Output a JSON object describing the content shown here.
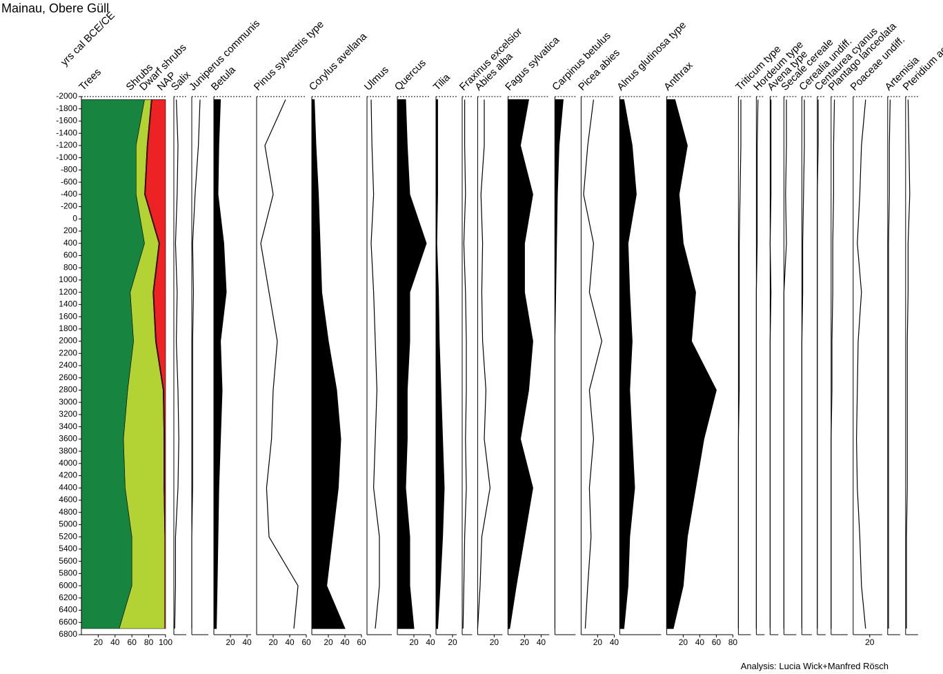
{
  "title": "Mainau, Obere Güll",
  "credit": "Analysis: Lucia Wick+Manfred Rösch",
  "chart_data": {
    "type": "area",
    "y_label": "yrs cal BCE/CE",
    "y": [
      -1950,
      -1200,
      -400,
      400,
      1200,
      2000,
      2800,
      3600,
      4400,
      5200,
      6000,
      6700
    ],
    "ylim": [
      -2000,
      6800
    ],
    "yticks": [
      -2000,
      -1800,
      -1600,
      -1400,
      -1200,
      -1000,
      -800,
      -600,
      -400,
      -200,
      0,
      200,
      400,
      600,
      800,
      1000,
      1200,
      1400,
      1600,
      1800,
      2000,
      2200,
      2400,
      2600,
      2800,
      3000,
      3200,
      3400,
      3600,
      3800,
      4000,
      4200,
      4400,
      4600,
      4800,
      5000,
      5200,
      5400,
      5600,
      5800,
      6000,
      6200,
      6400,
      6600,
      6800
    ],
    "summary": {
      "xlim": [
        0,
        100
      ],
      "xticks": [
        20,
        40,
        60,
        80,
        100
      ],
      "series": [
        {
          "name": "Trees",
          "color": "#178440",
          "values": [
            75,
            65,
            65,
            75,
            58,
            62,
            55,
            50,
            52,
            60,
            60,
            45
          ]
        },
        {
          "name": "Shrubs",
          "color": "#b3d334",
          "values": [
            8,
            13,
            10,
            17,
            27,
            26,
            42,
            48,
            46,
            39,
            39,
            54
          ]
        },
        {
          "name": "Dwarf shrubs",
          "color": "#8a1c1c",
          "values": [
            1,
            1,
            1,
            1,
            1,
            1,
            1,
            1,
            1,
            0,
            0,
            0
          ]
        },
        {
          "name": "NAP",
          "color": "#ed2224",
          "values": [
            16,
            21,
            24,
            7,
            14,
            11,
            2,
            1,
            1,
            1,
            1,
            1
          ]
        }
      ]
    },
    "series": [
      {
        "name": "Salix",
        "fill": false,
        "xlim": [
          0,
          15
        ],
        "xticks": [],
        "values": [
          3,
          5,
          4,
          2,
          4,
          3,
          5,
          6,
          5,
          2,
          2,
          1
        ]
      },
      {
        "name": "Juniperus communis",
        "fill": false,
        "xlim": [
          0,
          20
        ],
        "xticks": [],
        "values": [
          10,
          8,
          4,
          1,
          2,
          1,
          1,
          1,
          1,
          0,
          0,
          0
        ]
      },
      {
        "name": "Betula",
        "fill": true,
        "xlim": [
          0,
          45
        ],
        "xticks": [
          20,
          40
        ],
        "values": [
          8,
          6,
          5,
          12,
          15,
          8,
          10,
          8,
          6,
          5,
          4,
          3
        ]
      },
      {
        "name": "Pinus sylvestris type",
        "fill": false,
        "xlim": [
          0,
          60
        ],
        "xticks": [
          20,
          40,
          60
        ],
        "values": [
          35,
          10,
          20,
          5,
          15,
          25,
          20,
          18,
          12,
          15,
          50,
          45
        ]
      },
      {
        "name": "Corylus avellana",
        "fill": true,
        "xlim": [
          0,
          60
        ],
        "xticks": [
          20,
          40,
          60
        ],
        "values": [
          3,
          5,
          8,
          10,
          12,
          20,
          30,
          35,
          32,
          25,
          18,
          40
        ]
      },
      {
        "name": "Ulmus",
        "fill": false,
        "xlim": [
          0,
          30
        ],
        "xticks": [],
        "values": [
          5,
          6,
          8,
          5,
          8,
          10,
          12,
          10,
          8,
          15,
          15,
          10
        ]
      },
      {
        "name": "Quercus",
        "fill": true,
        "xlim": [
          0,
          40
        ],
        "xticks": [
          20,
          40
        ],
        "values": [
          10,
          12,
          15,
          35,
          15,
          15,
          12,
          12,
          10,
          15,
          15,
          20
        ]
      },
      {
        "name": "Tilia",
        "fill": true,
        "xlim": [
          0,
          25
        ],
        "xticks": [
          20
        ],
        "values": [
          2,
          2,
          2,
          1,
          3,
          4,
          6,
          8,
          10,
          8,
          5,
          2
        ]
      },
      {
        "name": "Fraxinus excelsior",
        "fill": false,
        "xlim": [
          0,
          12
        ],
        "xticks": [],
        "values": [
          3,
          3,
          4,
          2,
          4,
          5,
          5,
          4,
          5,
          3,
          2,
          1
        ]
      },
      {
        "name": "Abies alba",
        "fill": false,
        "xlim": [
          0,
          30
        ],
        "xticks": [
          20
        ],
        "values": [
          8,
          8,
          4,
          6,
          5,
          6,
          10,
          8,
          15,
          5,
          3,
          0
        ]
      },
      {
        "name": "Fagus sylvatica",
        "fill": true,
        "xlim": [
          0,
          50
        ],
        "xticks": [
          20,
          40
        ],
        "values": [
          25,
          15,
          30,
          20,
          20,
          30,
          25,
          15,
          30,
          20,
          10,
          2
        ]
      },
      {
        "name": "Carpinus betulus",
        "fill": true,
        "xlim": [
          0,
          25
        ],
        "xticks": [],
        "values": [
          10,
          5,
          3,
          2,
          1,
          0,
          0,
          0,
          0,
          0,
          0,
          0
        ]
      },
      {
        "name": "Picea abies",
        "fill": false,
        "xlim": [
          0,
          40
        ],
        "xticks": [
          20,
          40
        ],
        "values": [
          15,
          8,
          3,
          15,
          10,
          25,
          10,
          15,
          10,
          12,
          8,
          5
        ]
      },
      {
        "name": "Alnus glutinosa type",
        "fill": true,
        "xlim": [
          0,
          50
        ],
        "xticks": [],
        "values": [
          5,
          15,
          20,
          10,
          12,
          15,
          12,
          15,
          18,
          12,
          10,
          5
        ]
      },
      {
        "name": "Anthrax",
        "fill": true,
        "xlim": [
          0,
          80
        ],
        "xticks": [
          20,
          40,
          60,
          80
        ],
        "values": [
          10,
          25,
          15,
          20,
          35,
          30,
          60,
          45,
          35,
          25,
          20,
          8
        ]
      },
      {
        "name": "Triticum type",
        "fill": false,
        "xlim": [
          0,
          15
        ],
        "xticks": [],
        "values": [
          3,
          3,
          2,
          1,
          1,
          1,
          1,
          0,
          0,
          0,
          0,
          0
        ]
      },
      {
        "name": "Hordeum type",
        "fill": false,
        "xlim": [
          0,
          10
        ],
        "xticks": [],
        "values": [
          2,
          1,
          1,
          1,
          0,
          0,
          0,
          0,
          0,
          0,
          0,
          0
        ]
      },
      {
        "name": "Avena type",
        "fill": false,
        "xlim": [
          0,
          10
        ],
        "xticks": [],
        "values": [
          1,
          1,
          1,
          0,
          1,
          0,
          0,
          0,
          0,
          0,
          0,
          0
        ]
      },
      {
        "name": "Secale cereale",
        "fill": false,
        "xlim": [
          0,
          15
        ],
        "xticks": [],
        "values": [
          3,
          3,
          2,
          3,
          0,
          0,
          0,
          0,
          0,
          0,
          0,
          0
        ]
      },
      {
        "name": "Cerealia undiff.",
        "fill": false,
        "xlim": [
          0,
          12
        ],
        "xticks": [],
        "values": [
          3,
          3,
          2,
          1,
          1,
          0,
          0,
          0,
          0,
          0,
          0,
          0
        ]
      },
      {
        "name": "Centaurea cyanus",
        "fill": false,
        "xlim": [
          0,
          10
        ],
        "xticks": [],
        "values": [
          1,
          1,
          0,
          0,
          0,
          0,
          0,
          0,
          0,
          0,
          0,
          0
        ]
      },
      {
        "name": "Plantago lanceolata",
        "fill": false,
        "xlim": [
          0,
          20
        ],
        "xticks": [],
        "values": [
          4,
          3,
          3,
          2,
          2,
          1,
          1,
          0,
          0,
          0,
          0,
          0
        ]
      },
      {
        "name": "Poaceae undiff.",
        "fill": false,
        "xlim": [
          0,
          35
        ],
        "xticks": [
          20
        ],
        "values": [
          15,
          10,
          8,
          5,
          10,
          6,
          5,
          4,
          5,
          8,
          10,
          15
        ]
      },
      {
        "name": "Artemisia",
        "fill": false,
        "xlim": [
          0,
          15
        ],
        "xticks": [],
        "values": [
          3,
          2,
          2,
          1,
          1,
          1,
          1,
          1,
          1,
          1,
          1,
          1
        ]
      },
      {
        "name": "Pteridium aquilinum",
        "fill": false,
        "xlim": [
          0,
          15
        ],
        "xticks": [],
        "values": [
          3,
          4,
          5,
          3,
          3,
          2,
          2,
          2,
          2,
          1,
          1,
          1
        ]
      }
    ]
  }
}
